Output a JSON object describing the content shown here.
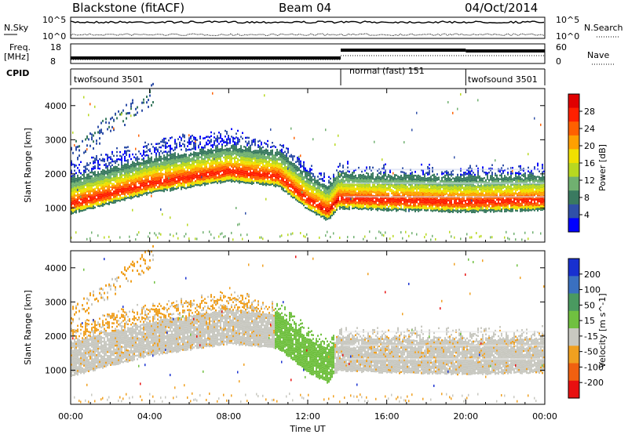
{
  "header": {
    "station": "Blackstone (fitACF)",
    "beam": "Beam 04",
    "date": "04/Oct/2014"
  },
  "strips": {
    "nsky_label": "N.Sky",
    "nsky_ticks": [
      "10^5",
      "10^0"
    ],
    "nsearch_label": "N.Search",
    "nsearch_ticks": [
      "10^5",
      "10^0"
    ],
    "freq_label": "Freq.",
    "freq_unit": "[MHz]",
    "freq_ticks": [
      "18",
      "8"
    ],
    "nave_label": "Nave",
    "nave_ticks": [
      "60",
      "0"
    ],
    "cpid_label": "CPID",
    "cpid_segments": [
      {
        "label": "twofsound 3501",
        "start": 0,
        "end": 13.67
      },
      {
        "label": "normal (fast) 151",
        "start": 13.67,
        "end": 20
      },
      {
        "label": "twofsound 3501",
        "start": 20,
        "end": 24
      }
    ]
  },
  "chart_data": [
    {
      "type": "heatmap",
      "title": "",
      "xlabel": "Time UT",
      "ylabel": "Slant Range [km]",
      "xlim": [
        0,
        24
      ],
      "ylim": [
        0,
        4500
      ],
      "x_ticks": [
        "00:00",
        "04:00",
        "08:00",
        "12:00",
        "16:00",
        "20:00",
        "00:00"
      ],
      "y_ticks": [
        "1000",
        "2000",
        "3000",
        "4000"
      ],
      "colorbar": {
        "label": "Power [dB]",
        "ticks": [
          "4",
          "8",
          "12",
          "16",
          "20",
          "24",
          "28"
        ],
        "colors": [
          "#0000ff",
          "#3050a8",
          "#3a7a60",
          "#70b070",
          "#b8d820",
          "#f0e000",
          "#ffa000",
          "#ff6000",
          "#ff2000",
          "#e00000"
        ]
      },
      "echo_band_center_km": [
        [
          0,
          1100
        ],
        [
          4,
          1700
        ],
        [
          8,
          2050
        ],
        [
          10.5,
          1900
        ],
        [
          12,
          1200
        ],
        [
          13,
          900
        ],
        [
          13.5,
          1250
        ],
        [
          16,
          1200
        ],
        [
          20,
          1150
        ],
        [
          24,
          1200
        ]
      ]
    },
    {
      "type": "heatmap",
      "title": "",
      "xlabel": "Time UT",
      "ylabel": "Slant Range [km]",
      "xlim": [
        0,
        24
      ],
      "ylim": [
        0,
        4500
      ],
      "x_ticks": [
        "00:00",
        "04:00",
        "08:00",
        "12:00",
        "16:00",
        "20:00",
        "00:00"
      ],
      "y_ticks": [
        "1000",
        "2000",
        "3000",
        "4000"
      ],
      "colorbar": {
        "label": "Velocity [m s^-1]",
        "ticks": [
          "200",
          "100",
          "50",
          "15",
          "-15",
          "-50",
          "-100",
          "-200"
        ],
        "colors": [
          "#1830d0",
          "#3a70c0",
          "#4a9a60",
          "#70c040",
          "#c8c8c0",
          "#f0a020",
          "#f06010",
          "#e81010"
        ]
      }
    }
  ]
}
